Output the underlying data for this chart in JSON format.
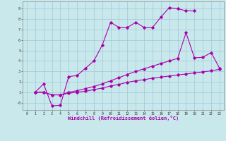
{
  "background_color": "#c8e8ec",
  "grid_color": "#a0c8d8",
  "line_color": "#aa00aa",
  "xlabel": "Windchill (Refroidissement éolien,°C)",
  "xlim": [
    -0.5,
    23.5
  ],
  "ylim": [
    -0.7,
    9.7
  ],
  "xticks": [
    0,
    1,
    2,
    3,
    4,
    5,
    6,
    7,
    8,
    9,
    10,
    11,
    12,
    13,
    14,
    15,
    16,
    17,
    18,
    19,
    20,
    21,
    22,
    23
  ],
  "yticks": [
    0,
    1,
    2,
    3,
    4,
    5,
    6,
    7,
    8,
    9
  ],
  "ytick_labels": [
    "-0",
    "1",
    "2",
    "3",
    "4",
    "5",
    "6",
    "7",
    "8",
    "9"
  ],
  "series": [
    {
      "x": [
        1,
        2,
        3,
        4,
        5,
        6,
        7,
        8,
        9,
        10,
        11,
        12,
        13,
        14,
        15,
        16,
        17,
        18,
        19,
        20
      ],
      "y": [
        1.0,
        1.8,
        -0.3,
        -0.25,
        2.5,
        2.6,
        3.3,
        4.0,
        5.5,
        7.7,
        7.2,
        7.2,
        7.7,
        7.2,
        7.2,
        8.2,
        9.1,
        9.0,
        8.8,
        8.8
      ]
    },
    {
      "x": [
        1,
        2,
        3,
        4,
        5,
        6,
        7,
        8,
        9,
        10,
        11,
        12,
        13,
        14,
        15,
        16,
        17,
        18,
        19,
        20,
        21,
        22,
        23
      ],
      "y": [
        1.0,
        1.0,
        0.75,
        0.75,
        0.9,
        1.0,
        1.1,
        1.25,
        1.4,
        1.6,
        1.75,
        1.95,
        2.1,
        2.2,
        2.35,
        2.45,
        2.55,
        2.65,
        2.75,
        2.85,
        2.95,
        3.05,
        3.2
      ]
    },
    {
      "x": [
        1,
        2,
        3,
        4,
        5,
        6,
        7,
        8,
        9,
        10,
        11,
        12,
        13,
        14,
        15,
        16,
        17,
        18,
        19,
        20,
        21,
        22,
        23
      ],
      "y": [
        1.0,
        1.0,
        0.75,
        0.75,
        1.0,
        1.15,
        1.35,
        1.55,
        1.8,
        2.1,
        2.4,
        2.7,
        3.0,
        3.25,
        3.5,
        3.75,
        4.0,
        4.25,
        6.7,
        4.3,
        4.35,
        4.8,
        3.3
      ]
    }
  ],
  "figsize": [
    3.2,
    2.0
  ],
  "dpi": 100
}
